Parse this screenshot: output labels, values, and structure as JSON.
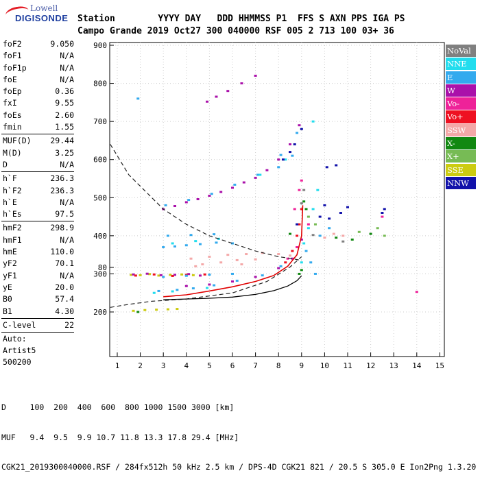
{
  "logo": {
    "line1": "Lowell",
    "line2": "DIGISONDE"
  },
  "header": {
    "labels": [
      "Station",
      "YYYY",
      "DAY",
      "DDD",
      "HHMMSS",
      "P1",
      "FFS",
      "S",
      "AXN",
      "PPS",
      "IGA",
      "PS"
    ],
    "values": [
      "Campo Grande",
      "2019",
      "Oct27",
      "300",
      "040000",
      "RSF",
      "005",
      "2",
      "713",
      "100",
      "03+",
      "36"
    ]
  },
  "params_groups": [
    [
      [
        "foF2",
        "9.050"
      ],
      [
        "foF1",
        "N/A"
      ],
      [
        "foF1p",
        "N/A"
      ],
      [
        "foE",
        "N/A"
      ],
      [
        "foEp",
        "0.36"
      ],
      [
        "fxI",
        "9.55"
      ],
      [
        "foEs",
        "2.60"
      ],
      [
        "fmin",
        "1.55"
      ]
    ],
    [
      [
        "MUF(D)",
        "29.44"
      ],
      [
        "M(D)",
        "3.25"
      ],
      [
        "D",
        "N/A"
      ]
    ],
    [
      [
        "h`F",
        "236.3"
      ],
      [
        "h`F2",
        "236.3"
      ],
      [
        "h`E",
        "N/A"
      ],
      [
        "h`Es",
        "97.5"
      ]
    ],
    [
      [
        "hmF2",
        "298.9"
      ],
      [
        "hmF1",
        "N/A"
      ],
      [
        "hmE",
        "110.0"
      ],
      [
        "yF2",
        "70.1"
      ],
      [
        "yF1",
        "N/A"
      ],
      [
        "yE",
        "20.0"
      ],
      [
        "B0",
        "57.4"
      ],
      [
        "B1",
        "4.30"
      ]
    ],
    [
      [
        "C-level",
        "22"
      ]
    ]
  ],
  "auto_lines": [
    "Auto:",
    "Artist5",
    "500200"
  ],
  "legend": [
    {
      "label": "NoVal",
      "color": "#808080"
    },
    {
      "label": "NNE",
      "color": "#22ddee"
    },
    {
      "label": "E",
      "color": "#33aaee"
    },
    {
      "label": "W",
      "color": "#aa11aa"
    },
    {
      "label": "Vo-",
      "color": "#ee2299"
    },
    {
      "label": "Vo+",
      "color": "#ee1122"
    },
    {
      "label": "SSW",
      "color": "#f4a8a8"
    },
    {
      "label": "X-",
      "color": "#118811"
    },
    {
      "label": "X+",
      "color": "#77bb55"
    },
    {
      "label": "SSE",
      "color": "#cccc11"
    },
    {
      "label": "NNW",
      "color": "#1111aa"
    }
  ],
  "footer": {
    "d_line": "D     100  200  400  600  800 1000 1500 3000 [km]",
    "muf_line": "MUF   9.4  9.5  9.9 10.7 11.8 13.3 17.8 29.4 [MHz]",
    "file_line": "CGK21_2019300040000.RSF / 284fx512h 50 kHz 2.5 km / DPS-4D CGK21 821 / 20.5 S 305.0 E Ion2Png 1.3.20"
  },
  "chart_data": {
    "type": "scatter",
    "xlim": [
      0.7,
      15.2
    ],
    "ylim": [
      80,
      900
    ],
    "x_ticks": [
      "1",
      "2",
      "3",
      "4",
      "5",
      "6",
      "7",
      "8",
      "9",
      "10",
      "11",
      "12",
      "13",
      "14",
      "15"
    ],
    "y_ticks": [
      "80",
      "200",
      "300",
      "400",
      "500",
      "600",
      "700",
      "800",
      "900"
    ],
    "xlabel": "",
    "ylabel": "",
    "grid": true,
    "curves": {
      "dashed_muf": {
        "style": "dashed",
        "points": [
          [
            0.7,
            640
          ],
          [
            1.5,
            560
          ],
          [
            3,
            470
          ],
          [
            4,
            430
          ],
          [
            5,
            400
          ],
          [
            6,
            380
          ],
          [
            7,
            360
          ],
          [
            8,
            345
          ],
          [
            8.6,
            340
          ],
          [
            9,
            335
          ]
        ]
      },
      "dashed_low": {
        "style": "dashed",
        "points": [
          [
            0.7,
            212
          ],
          [
            1.5,
            220
          ],
          [
            2.5,
            228
          ],
          [
            4,
            234
          ],
          [
            6,
            250
          ],
          [
            7.5,
            280
          ],
          [
            8.5,
            318
          ],
          [
            9,
            345
          ]
        ]
      },
      "solid_profile": {
        "style": "solid",
        "points": [
          [
            3,
            232
          ],
          [
            4,
            234
          ],
          [
            5,
            236
          ],
          [
            6,
            239
          ],
          [
            7,
            246
          ],
          [
            7.8,
            256
          ],
          [
            8.4,
            268
          ],
          [
            8.8,
            282
          ],
          [
            9.0,
            295
          ]
        ]
      },
      "red_trace": {
        "style": "solid",
        "points": [
          [
            3,
            240
          ],
          [
            4,
            245
          ],
          [
            5,
            255
          ],
          [
            6,
            266
          ],
          [
            7,
            280
          ],
          [
            7.8,
            296
          ],
          [
            8.4,
            320
          ],
          [
            8.8,
            350
          ],
          [
            9.0,
            400
          ],
          [
            9.05,
            480
          ]
        ]
      }
    },
    "series": [
      {
        "name": "SSE",
        "points": [
          [
            1.6,
            100
          ],
          [
            2.0,
            101
          ],
          [
            2.4,
            98
          ],
          [
            2.8,
            102
          ],
          [
            3.3,
            100
          ],
          [
            3.8,
            99
          ],
          [
            4.3,
            101
          ],
          [
            1.7,
            203
          ],
          [
            2.2,
            205
          ],
          [
            2.7,
            206
          ],
          [
            3.2,
            207
          ],
          [
            3.6,
            208
          ]
        ]
      },
      {
        "name": "W",
        "points": [
          [
            1.7,
            99
          ],
          [
            2.3,
            97
          ],
          [
            2.9,
            101
          ],
          [
            3.5,
            100
          ],
          [
            4.1,
            98
          ],
          [
            4.6,
            102
          ],
          [
            3,
            470
          ],
          [
            3.5,
            478
          ],
          [
            4,
            488
          ],
          [
            4.5,
            496
          ],
          [
            5,
            505
          ],
          [
            5.5,
            515
          ],
          [
            6,
            526
          ],
          [
            6.5,
            540
          ],
          [
            7,
            552
          ],
          [
            7.5,
            572
          ],
          [
            8,
            600
          ],
          [
            8.5,
            640
          ],
          [
            8.9,
            690
          ],
          [
            4.9,
            752
          ],
          [
            5.3,
            765
          ],
          [
            5.8,
            780
          ],
          [
            6.4,
            800
          ],
          [
            7.0,
            820
          ],
          [
            4,
            268
          ],
          [
            5,
            272
          ],
          [
            6,
            280
          ],
          [
            7,
            292
          ],
          [
            8,
            315
          ],
          [
            8.6,
            340
          ],
          [
            9,
            390
          ]
        ]
      },
      {
        "name": "Vo+",
        "points": [
          [
            1.8,
            102
          ],
          [
            2.6,
            99
          ],
          [
            3.4,
            103
          ],
          [
            4.0,
            100
          ],
          [
            4.8,
            99
          ],
          [
            9.0,
            470
          ],
          [
            8.9,
            430
          ],
          [
            8.8,
            400
          ],
          [
            8.6,
            360
          ],
          [
            8.3,
            330
          ]
        ]
      },
      {
        "name": "E",
        "points": [
          [
            3,
            370
          ],
          [
            3.5,
            372
          ],
          [
            4,
            375
          ],
          [
            4.6,
            378
          ],
          [
            5.3,
            382
          ],
          [
            6,
            380
          ],
          [
            3.2,
            400
          ],
          [
            4.2,
            402
          ],
          [
            5.2,
            404
          ],
          [
            3,
            292
          ],
          [
            4,
            295
          ],
          [
            5,
            298
          ],
          [
            6,
            300
          ],
          [
            2.8,
            255
          ],
          [
            3.6,
            258
          ],
          [
            4.3,
            262
          ],
          [
            5.2,
            270
          ],
          [
            6.2,
            282
          ],
          [
            7.3,
            296
          ],
          [
            8.1,
            320
          ],
          [
            3.1,
            480
          ],
          [
            4.1,
            494
          ],
          [
            5.1,
            510
          ],
          [
            6.1,
            534
          ],
          [
            7.1,
            560
          ],
          [
            8.1,
            612
          ],
          [
            8.8,
            670
          ],
          [
            9.2,
            360
          ],
          [
            9.4,
            330
          ],
          [
            9.6,
            300
          ],
          [
            9.8,
            400
          ],
          [
            10.2,
            420
          ],
          [
            1.9,
            760
          ],
          [
            8.0,
            580
          ],
          [
            8.6,
            610
          ]
        ]
      },
      {
        "name": "NNE",
        "points": [
          [
            3.4,
            380
          ],
          [
            4.4,
            386
          ],
          [
            5.4,
            392
          ],
          [
            2.6,
            250
          ],
          [
            3.4,
            254
          ],
          [
            4.9,
            263
          ],
          [
            9.1,
            380
          ],
          [
            9.3,
            420
          ],
          [
            9.5,
            470
          ],
          [
            9.7,
            520
          ],
          [
            9.5,
            700
          ],
          [
            7.2,
            560
          ],
          [
            8.3,
            600
          ],
          [
            9.0,
            330
          ]
        ]
      },
      {
        "name": "SSW",
        "points": [
          [
            4.2,
            340
          ],
          [
            5,
            345
          ],
          [
            5.8,
            350
          ],
          [
            6.6,
            352
          ],
          [
            7.3,
            355
          ],
          [
            8.0,
            352
          ],
          [
            8.5,
            348
          ],
          [
            4.7,
            325
          ],
          [
            5.5,
            330
          ],
          [
            6.2,
            336
          ],
          [
            7.0,
            338
          ],
          [
            10.0,
            395
          ],
          [
            10.4,
            405
          ],
          [
            10.8,
            400
          ],
          [
            4.4,
            320
          ],
          [
            6.4,
            325
          ]
        ]
      },
      {
        "name": "X-",
        "points": [
          [
            9.1,
            490
          ],
          [
            9.2,
            470
          ],
          [
            8.9,
            300
          ],
          [
            10.5,
            395
          ],
          [
            11.2,
            390
          ],
          [
            12.0,
            405
          ],
          [
            1.9,
            200
          ],
          [
            8.5,
            405
          ],
          [
            9.0,
            310
          ]
        ]
      },
      {
        "name": "X+",
        "points": [
          [
            9.3,
            450
          ],
          [
            9.6,
            430
          ],
          [
            11.5,
            410
          ],
          [
            12.6,
            400
          ],
          [
            12.3,
            420
          ]
        ]
      },
      {
        "name": "NNW",
        "points": [
          [
            8.5,
            620
          ],
          [
            8.7,
            640
          ],
          [
            9.0,
            680
          ],
          [
            8.2,
            600
          ],
          [
            10.1,
            580
          ],
          [
            10.5,
            585
          ],
          [
            10.2,
            445
          ],
          [
            10.7,
            460
          ],
          [
            11.0,
            475
          ],
          [
            12.5,
            460
          ],
          [
            12.6,
            470
          ],
          [
            9.8,
            450
          ],
          [
            10.0,
            480
          ],
          [
            8.8,
            430
          ]
        ]
      },
      {
        "name": "Vo-",
        "points": [
          [
            9.0,
            545
          ],
          [
            8.9,
            520
          ],
          [
            8.7,
            470
          ],
          [
            9.3,
            430
          ],
          [
            14.0,
            146
          ],
          [
            8.8,
            370
          ],
          [
            8.4,
            340
          ],
          [
            12.5,
            450
          ]
        ]
      },
      {
        "name": "NoVal",
        "points": [
          [
            9.1,
            520
          ],
          [
            9.0,
            485
          ],
          [
            9.5,
            402
          ],
          [
            10.8,
            385
          ]
        ]
      }
    ]
  }
}
